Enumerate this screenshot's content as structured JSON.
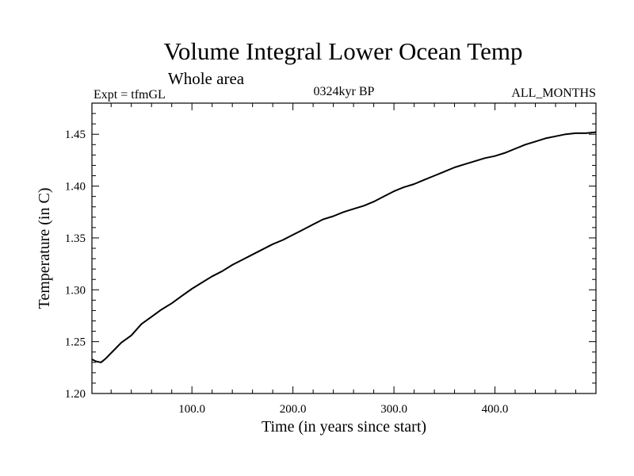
{
  "chart_data": {
    "type": "line",
    "title": "Volume Integral Lower Ocean Temp",
    "subtitle": "Whole area",
    "header_left": "Expt = tfmGL",
    "header_center": "0324kyr BP",
    "header_right": "ALL_MONTHS",
    "xlabel": "Time (in years since start)",
    "ylabel": "Temperature (in C)",
    "xlim": [
      1,
      500
    ],
    "ylim": [
      1.2,
      1.48
    ],
    "xticks": [
      100,
      200,
      300,
      400
    ],
    "xtick_labels": [
      "100.0",
      "200.0",
      "300.0",
      "400.0"
    ],
    "yticks": [
      1.2,
      1.25,
      1.3,
      1.35,
      1.4,
      1.45
    ],
    "ytick_labels": [
      "1.20",
      "1.25",
      "1.30",
      "1.35",
      "1.40",
      "1.45"
    ],
    "grid": false,
    "line_color": "#000000",
    "series": [
      {
        "x": [
          1,
          5,
          10,
          15,
          20,
          25,
          30,
          40,
          50,
          60,
          70,
          80,
          90,
          100,
          110,
          120,
          130,
          140,
          150,
          160,
          170,
          180,
          190,
          200,
          210,
          220,
          230,
          240,
          250,
          260,
          270,
          280,
          290,
          300,
          310,
          320,
          330,
          340,
          350,
          360,
          370,
          380,
          390,
          400,
          410,
          420,
          430,
          440,
          450,
          460,
          470,
          480,
          490,
          500
        ],
        "y": [
          1.233,
          1.231,
          1.23,
          1.234,
          1.239,
          1.244,
          1.249,
          1.256,
          1.267,
          1.274,
          1.281,
          1.287,
          1.294,
          1.301,
          1.307,
          1.313,
          1.318,
          1.324,
          1.329,
          1.334,
          1.339,
          1.344,
          1.348,
          1.353,
          1.358,
          1.363,
          1.368,
          1.371,
          1.375,
          1.378,
          1.381,
          1.385,
          1.39,
          1.395,
          1.399,
          1.402,
          1.406,
          1.41,
          1.414,
          1.418,
          1.421,
          1.424,
          1.427,
          1.429,
          1.432,
          1.436,
          1.44,
          1.443,
          1.446,
          1.448,
          1.45,
          1.451,
          1.451,
          1.452
        ]
      }
    ]
  }
}
